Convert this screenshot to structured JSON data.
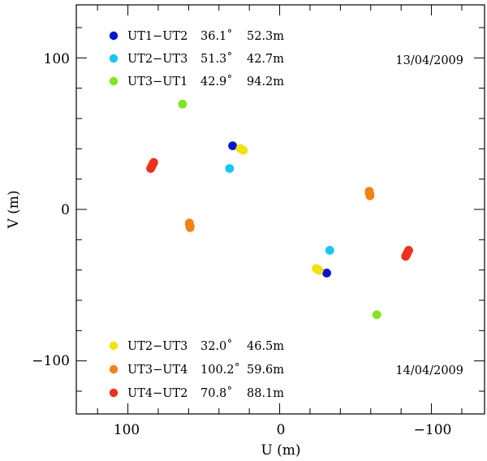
{
  "chart_data": {
    "type": "scatter",
    "xlabel": "U (m)",
    "ylabel": "V (m)",
    "xlim": [
      134,
      -135
    ],
    "ylim": [
      -135,
      135
    ],
    "x_ticks": [
      100,
      0,
      -100
    ],
    "x_tick_labels": [
      "100",
      "0",
      "−100"
    ],
    "y_ticks": [
      100,
      0,
      -100
    ],
    "y_tick_labels": [
      "100",
      "0",
      "−100"
    ],
    "minor_tick_step": 20,
    "grid": false,
    "annotations": [
      "13/04/2009",
      "14/04/2009"
    ],
    "legend_groups": [
      {
        "placement": "top-left",
        "entries": [
          {
            "baseline": "UT1−UT2",
            "angle": "36.1˚",
            "length": "52.3m",
            "color": "#0015d4"
          },
          {
            "baseline": "UT2−UT3",
            "angle": "51.3˚",
            "length": "42.7m",
            "color": "#14c8f0"
          },
          {
            "baseline": "UT3−UT1",
            "angle": "42.9˚",
            "length": "94.2m",
            "color": "#7ee61c"
          }
        ]
      },
      {
        "placement": "bottom-left",
        "entries": [
          {
            "baseline": "UT2−UT3",
            "angle": "32.0˚",
            "length": "46.5m",
            "color": "#f2e20a"
          },
          {
            "baseline": "UT3−UT4",
            "angle": "100.2˚",
            "length": "59.6m",
            "color": "#f08312"
          },
          {
            "baseline": "UT4−UT2",
            "angle": "70.8˚",
            "length": "88.1m",
            "color": "#f0301c"
          }
        ]
      }
    ],
    "series": [
      {
        "name": "UT1−UT2 (13/04/2009)",
        "color": "#0015d4",
        "points": [
          [
            31,
            42
          ],
          [
            -31,
            -42
          ]
        ]
      },
      {
        "name": "UT2−UT3 (13/04/2009)",
        "color": "#14c8f0",
        "points": [
          [
            33,
            27
          ],
          [
            -33,
            -27
          ]
        ]
      },
      {
        "name": "UT3−UT1 (13/04/2009)",
        "color": "#7ee61c",
        "points": [
          [
            64,
            69.5
          ],
          [
            -64,
            -69.5
          ]
        ]
      },
      {
        "name": "UT2−UT3 (14/04/2009)",
        "color": "#f2e20a",
        "points": [
          [
            24,
            39
          ],
          [
            25,
            39.6
          ],
          [
            26,
            40.2
          ],
          [
            -24,
            -39
          ],
          [
            -25,
            -39.6
          ],
          [
            -26,
            -40.2
          ]
        ]
      },
      {
        "name": "UT3−UT4 (14/04/2009)",
        "color": "#f08312",
        "points": [
          [
            59,
            -12
          ],
          [
            59,
            -11
          ],
          [
            59.5,
            -10
          ],
          [
            59.5,
            -9
          ],
          [
            -59,
            12
          ],
          [
            -59,
            11
          ],
          [
            -59.5,
            10
          ],
          [
            -59.5,
            9
          ]
        ]
      },
      {
        "name": "UT4−UT2 (14/04/2009)",
        "color": "#f0301c",
        "points": [
          [
            85,
            27
          ],
          [
            84.5,
            28
          ],
          [
            84,
            29
          ],
          [
            83.5,
            30
          ],
          [
            83,
            31
          ],
          [
            -85,
            -27
          ],
          [
            -84.5,
            -28
          ],
          [
            -84,
            -29
          ],
          [
            -83.5,
            -30
          ],
          [
            -83,
            -31
          ]
        ]
      }
    ]
  }
}
